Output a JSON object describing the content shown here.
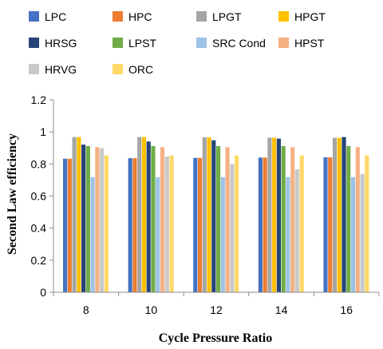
{
  "chart_data": {
    "type": "bar",
    "title": "",
    "xlabel": "Cycle Pressure Ratio",
    "ylabel": "Second Law efficiency",
    "ylim": [
      0,
      1.2
    ],
    "yticks": [
      "0",
      "0.2",
      "0.4",
      "0.6",
      "0.8",
      "1",
      "1.2"
    ],
    "grid": false,
    "legend_position": "top",
    "categories": [
      "8",
      "10",
      "12",
      "14",
      "16"
    ],
    "series": [
      {
        "name": "LPC",
        "color": "#4472C4",
        "values": [
          0.833,
          0.836,
          0.838,
          0.84,
          0.842
        ]
      },
      {
        "name": "HPC",
        "color": "#ED7D31",
        "values": [
          0.833,
          0.836,
          0.838,
          0.84,
          0.842
        ]
      },
      {
        "name": "LPGT",
        "color": "#A5A5A5",
        "values": [
          0.968,
          0.968,
          0.966,
          0.964,
          0.963
        ]
      },
      {
        "name": "HPGT",
        "color": "#FFC000",
        "values": [
          0.968,
          0.968,
          0.966,
          0.964,
          0.963
        ]
      },
      {
        "name": "HRSG",
        "color": "#264478",
        "values": [
          0.921,
          0.94,
          0.948,
          0.958,
          0.968
        ]
      },
      {
        "name": "LPST",
        "color": "#70AD47",
        "values": [
          0.912,
          0.912,
          0.912,
          0.912,
          0.912
        ]
      },
      {
        "name": "SRC Cond",
        "color": "#9DC3E6",
        "values": [
          0.718,
          0.718,
          0.718,
          0.718,
          0.718
        ]
      },
      {
        "name": "HPST",
        "color": "#F4B183",
        "values": [
          0.905,
          0.905,
          0.905,
          0.905,
          0.905
        ]
      },
      {
        "name": "HRVG",
        "color": "#C9C9C9",
        "values": [
          0.898,
          0.846,
          0.8,
          0.766,
          0.738
        ]
      },
      {
        "name": "ORC",
        "color": "#FFD966",
        "values": [
          0.853,
          0.853,
          0.853,
          0.853,
          0.853
        ]
      }
    ]
  }
}
